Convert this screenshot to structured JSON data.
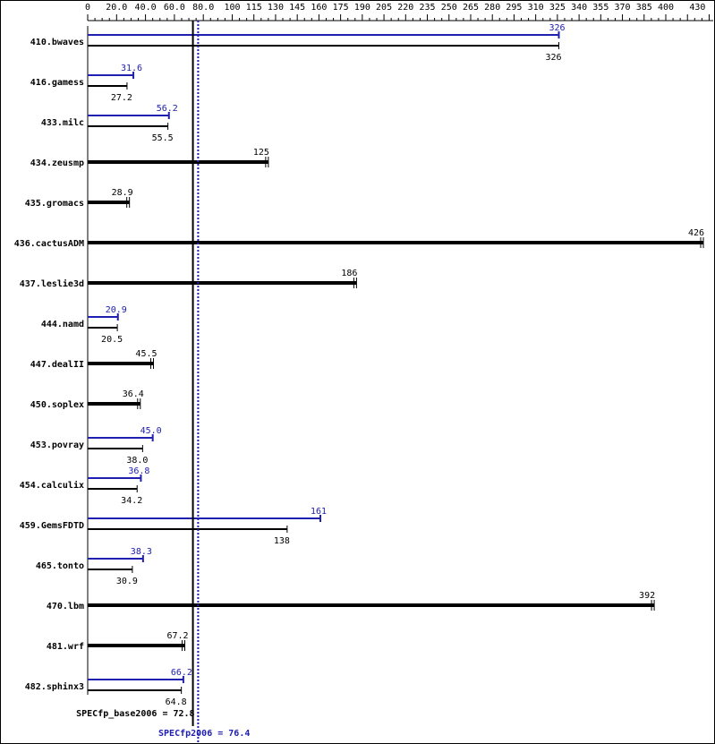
{
  "chart_data": {
    "type": "bar",
    "orientation": "horizontal",
    "x_ticks": [
      "0",
      "20.0",
      "40.0",
      "60.0",
      "80.0",
      "100",
      "115",
      "130",
      "145",
      "160",
      "175",
      "190",
      "205",
      "220",
      "235",
      "250",
      "265",
      "280",
      "295",
      "310",
      "325",
      "340",
      "355",
      "370",
      "385",
      "400",
      "430"
    ],
    "x_tick_values": [
      0,
      20,
      40,
      60,
      80,
      100,
      115,
      130,
      145,
      160,
      175,
      190,
      205,
      220,
      235,
      250,
      265,
      280,
      295,
      310,
      325,
      340,
      355,
      370,
      385,
      400,
      430
    ],
    "xlim": [
      0,
      430
    ],
    "colors": {
      "base": "#000000",
      "peak": "#2020b0"
    },
    "categories": [
      "410.bwaves",
      "416.gamess",
      "433.milc",
      "434.zeusmp",
      "435.gromacs",
      "436.cactusADM",
      "437.leslie3d",
      "444.namd",
      "447.dealII",
      "450.soplex",
      "453.povray",
      "454.calculix",
      "459.GemsFDTD",
      "465.tonto",
      "470.lbm",
      "481.wrf",
      "482.sphinx3"
    ],
    "series": [
      {
        "key": "base",
        "values": [
          326,
          27.2,
          55.5,
          125,
          28.9,
          426,
          186,
          20.5,
          45.5,
          36.4,
          38.0,
          34.2,
          138,
          30.9,
          392,
          67.2,
          64.8
        ],
        "labels": [
          "326",
          "27.2",
          "55.5",
          "125",
          "28.9",
          "426",
          "186",
          "20.5",
          "45.5",
          "36.4",
          "38.0",
          "34.2",
          "138",
          "30.9",
          "392",
          "67.2",
          "64.8"
        ]
      },
      {
        "key": "peak",
        "values": [
          326,
          31.6,
          56.2,
          null,
          null,
          null,
          null,
          20.9,
          null,
          null,
          45.0,
          36.8,
          161,
          38.3,
          null,
          null,
          66.2
        ],
        "labels": [
          "326",
          "31.6",
          "56.2",
          "",
          "",
          "",
          "",
          "20.9",
          "",
          "",
          "45.0",
          "36.8",
          "161",
          "38.3",
          "",
          "",
          "66.2"
        ]
      }
    ],
    "reference_lines": [
      {
        "key": "base",
        "label": "SPECfp_base2006 = 72.8",
        "value": 72.8,
        "style": "solid"
      },
      {
        "key": "peak",
        "label": "SPECfp2006 = 76.4",
        "value": 76.4,
        "style": "dotted"
      }
    ]
  }
}
